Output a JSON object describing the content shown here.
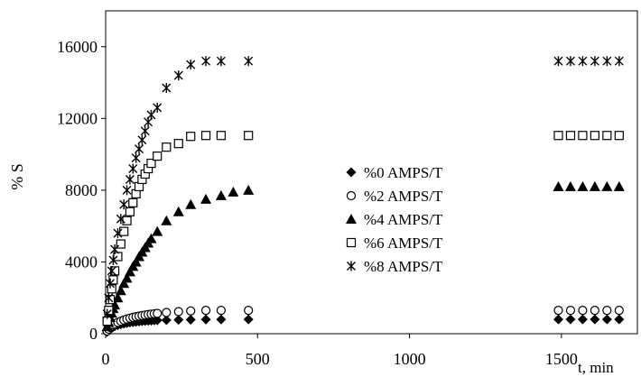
{
  "chart_data": {
    "type": "scatter",
    "title": "",
    "xlabel": "t, min",
    "ylabel": "% S",
    "xlim": [
      0,
      1750
    ],
    "ylim": [
      0,
      18000
    ],
    "xticks": [
      0,
      500,
      1000,
      1500
    ],
    "yticks": [
      0,
      4000,
      8000,
      12000,
      16000
    ],
    "grid": false,
    "legend_position": "center-right",
    "series": [
      {
        "name": "%0 AMPS/T",
        "marker": "diamond-filled",
        "x": [
          5,
          10,
          15,
          20,
          25,
          30,
          40,
          50,
          60,
          70,
          80,
          90,
          100,
          110,
          120,
          130,
          140,
          150,
          160,
          170,
          200,
          240,
          280,
          330,
          380,
          470,
          1490,
          1530,
          1570,
          1610,
          1650,
          1690
        ],
        "y": [
          100,
          180,
          260,
          320,
          380,
          420,
          480,
          520,
          560,
          590,
          620,
          640,
          660,
          680,
          700,
          710,
          720,
          730,
          740,
          750,
          760,
          770,
          780,
          790,
          790,
          800,
          800,
          800,
          800,
          800,
          800,
          800
        ]
      },
      {
        "name": "%2 AMPS/T",
        "marker": "circle-open",
        "x": [
          5,
          10,
          15,
          20,
          25,
          30,
          40,
          50,
          60,
          70,
          80,
          90,
          100,
          110,
          120,
          130,
          140,
          150,
          160,
          170,
          200,
          240,
          280,
          330,
          380,
          470,
          1490,
          1530,
          1570,
          1610,
          1650,
          1690
        ],
        "y": [
          150,
          250,
          350,
          420,
          490,
          550,
          630,
          700,
          760,
          820,
          870,
          910,
          950,
          980,
          1010,
          1040,
          1070,
          1090,
          1110,
          1130,
          1180,
          1230,
          1270,
          1300,
          1300,
          1300,
          1300,
          1300,
          1300,
          1300,
          1300,
          1300
        ]
      },
      {
        "name": "%4 AMPS/T",
        "marker": "triangle-filled",
        "x": [
          5,
          10,
          15,
          20,
          25,
          30,
          40,
          50,
          60,
          70,
          80,
          90,
          100,
          110,
          120,
          130,
          140,
          150,
          170,
          200,
          240,
          280,
          330,
          380,
          420,
          470,
          1490,
          1530,
          1570,
          1610,
          1650,
          1690
        ],
        "y": [
          400,
          650,
          900,
          1150,
          1400,
          1600,
          2000,
          2400,
          2800,
          3100,
          3450,
          3750,
          4000,
          4300,
          4550,
          4800,
          5050,
          5300,
          5700,
          6300,
          6800,
          7200,
          7500,
          7700,
          7900,
          8000,
          8200,
          8200,
          8200,
          8200,
          8200,
          8200
        ]
      },
      {
        "name": "%6 AMPS/T",
        "marker": "square-open",
        "x": [
          5,
          10,
          15,
          20,
          25,
          30,
          40,
          50,
          60,
          70,
          80,
          90,
          100,
          110,
          120,
          130,
          140,
          150,
          170,
          200,
          240,
          280,
          330,
          380,
          470,
          1490,
          1530,
          1570,
          1610,
          1650,
          1690
        ],
        "y": [
          700,
          1300,
          1900,
          2500,
          3000,
          3500,
          4300,
          5000,
          5700,
          6300,
          6800,
          7300,
          7800,
          8200,
          8600,
          8900,
          9200,
          9500,
          9900,
          10400,
          10600,
          11000,
          11050,
          11050,
          11050,
          11050,
          11050,
          11050,
          11050,
          11050,
          11050
        ]
      },
      {
        "name": "%8 AMPS/T",
        "marker": "asterisk",
        "x": [
          5,
          10,
          15,
          20,
          25,
          30,
          40,
          50,
          60,
          70,
          80,
          90,
          100,
          110,
          120,
          130,
          140,
          150,
          170,
          200,
          240,
          280,
          330,
          380,
          470,
          1490,
          1530,
          1570,
          1610,
          1650,
          1690
        ],
        "y": [
          1100,
          2000,
          2800,
          3500,
          4100,
          4700,
          5600,
          6400,
          7200,
          8000,
          8600,
          9200,
          9800,
          10300,
          10800,
          11300,
          11800,
          12200,
          12600,
          13700,
          14400,
          15000,
          15200,
          15200,
          15200,
          15200,
          15200,
          15200,
          15200,
          15200,
          15200
        ]
      }
    ]
  }
}
